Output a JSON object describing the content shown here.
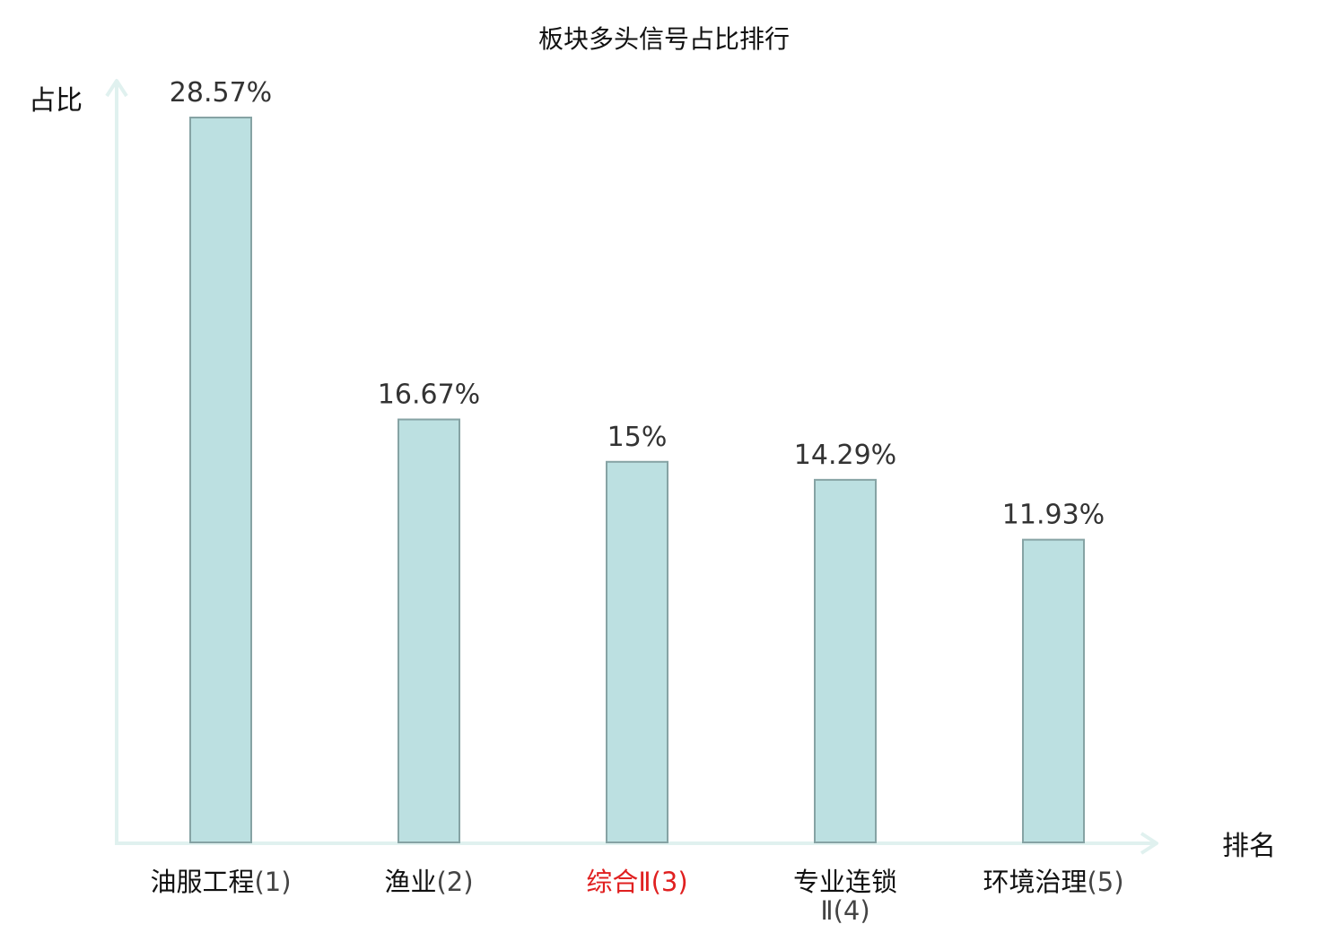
{
  "chart_data": {
    "type": "bar",
    "title": "板块多头信号占比排行",
    "xlabel": "排名",
    "ylabel": "占比",
    "categories": [
      {
        "name": "油服工程",
        "rank": "(1)",
        "highlight": false
      },
      {
        "name": "渔业",
        "rank": "(2)",
        "highlight": false
      },
      {
        "name": "综合Ⅱ",
        "rank": "(3)",
        "highlight": true
      },
      {
        "name": "专业连锁",
        "name_line2": "Ⅱ(4)",
        "rank": "",
        "highlight": false
      },
      {
        "name": "环境治理",
        "rank": "(5)",
        "highlight": false
      }
    ],
    "values": [
      28.57,
      16.67,
      15,
      14.29,
      11.93
    ],
    "value_labels": [
      "28.57%",
      "16.67%",
      "15%",
      "14.29%",
      "11.93%"
    ],
    "ylim": [
      0,
      28.57
    ],
    "grid": false,
    "legend": "none"
  },
  "colors": {
    "bar_fill": "#bce0e1",
    "bar_stroke": "#86a3a4",
    "axis": "#e0f1ef",
    "highlight_text": "#e02020",
    "normal_text": "#111111",
    "rank_text": "#444444"
  }
}
